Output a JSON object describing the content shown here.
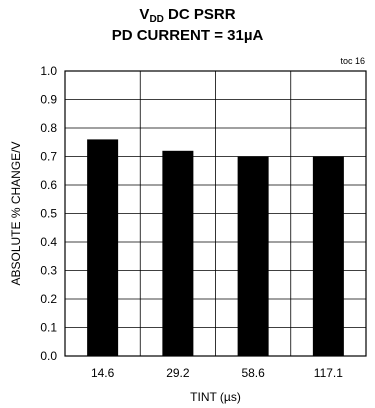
{
  "chart_data": {
    "type": "bar",
    "title_main": "V",
    "title_sub": "DD",
    "title_rest": " DC PSRR",
    "subtitle": "PD CURRENT = 31µA",
    "note": "toc 16",
    "xlabel": "TINT (µs)",
    "ylabel": "ABSOLUTE  % CHANGE/V",
    "categories": [
      "14.6",
      "29.2",
      "58.6",
      "117.1"
    ],
    "values": [
      0.76,
      0.72,
      0.7,
      0.7
    ],
    "ylim": [
      0,
      1.0
    ],
    "yticks": [
      "0.0",
      "0.1",
      "0.2",
      "0.3",
      "0.4",
      "0.5",
      "0.6",
      "0.7",
      "0.8",
      "0.9",
      "1.0"
    ],
    "grid": true,
    "bar_color": "#000000"
  }
}
